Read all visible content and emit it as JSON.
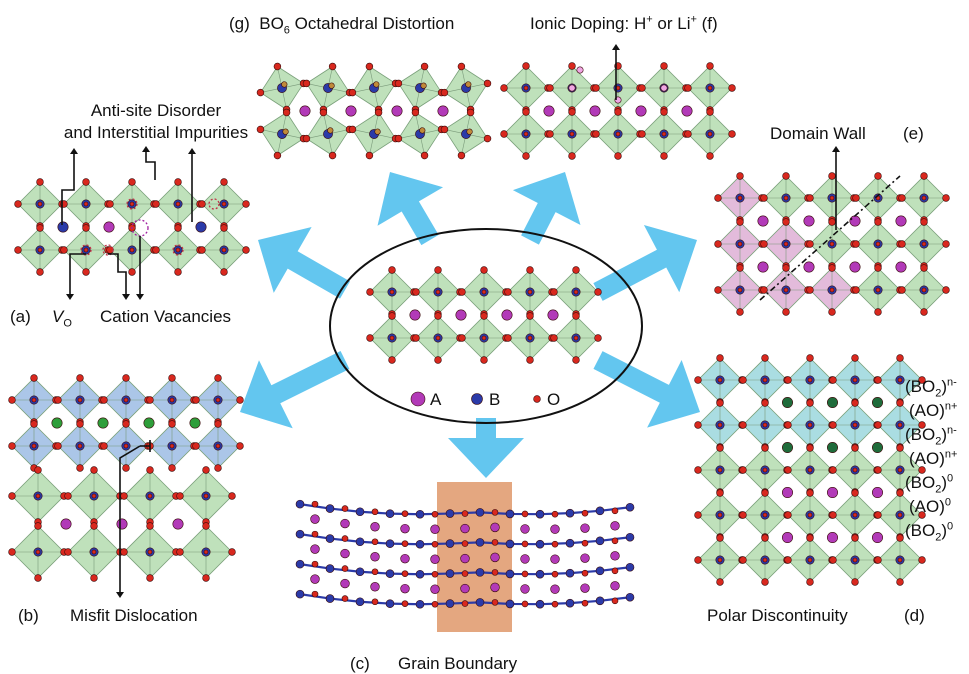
{
  "center": {
    "legend": [
      {
        "symbol": "A",
        "color": "#b23ab8"
      },
      {
        "symbol": "B",
        "color": "#2b3aa8"
      },
      {
        "symbol": "O",
        "color": "#d8281e"
      }
    ]
  },
  "panels": {
    "g": {
      "letter": "(g)",
      "title_pre": "BO",
      "title_sub": "6",
      "title_post": " Octahedral Distortion"
    },
    "f": {
      "letter": "(f)",
      "title_pre": "Ionic Doping: H",
      "sup1": "+",
      "title_mid": " or Li",
      "sup2": "+"
    },
    "a": {
      "letter": "(a)",
      "title_line1": "Anti-site Disorder",
      "title_line2": "and Interstitial Impurities",
      "vo_main": "V",
      "vo_sub": "O",
      "cation_vac": "Cation Vacancies"
    },
    "e": {
      "letter": "(e)",
      "title": "Domain Wall"
    },
    "b": {
      "letter": "(b)",
      "title": "Misfit Dislocation"
    },
    "c": {
      "letter": "(c)",
      "title": "Grain Boundary"
    },
    "d": {
      "letter": "(d)",
      "title": "Polar Discontinuity",
      "layers": [
        {
          "base": "(BO",
          "sub": "2",
          "close": ")",
          "sup": "n-"
        },
        {
          "base": "(AO)",
          "sub": "",
          "close": "",
          "sup": "n+"
        },
        {
          "base": "(BO",
          "sub": "2",
          "close": ")",
          "sup": "n-"
        },
        {
          "base": "(AO)",
          "sub": "",
          "close": "",
          "sup": "n+"
        },
        {
          "base": "(BO",
          "sub": "2",
          "close": ")",
          "sup": "0"
        },
        {
          "base": "(AO)",
          "sub": "",
          "close": "",
          "sup": "0"
        },
        {
          "base": "(BO",
          "sub": "2",
          "close": ")",
          "sup": "0"
        }
      ]
    }
  },
  "colors": {
    "arrow": "#63c6ef",
    "octa_green": "#a9d7a4",
    "octa_pink": "#d9a4cf",
    "octa_blue": "#8fb3e0",
    "octa_cyan": "#8ed2d8",
    "grain_box": "#d9824a",
    "a_site": "#b23ab8",
    "b_site": "#2b3aa8",
    "o_site": "#d8281e",
    "dopant_green": "#2e9e3a",
    "dark_green": "#1f6b3a"
  }
}
